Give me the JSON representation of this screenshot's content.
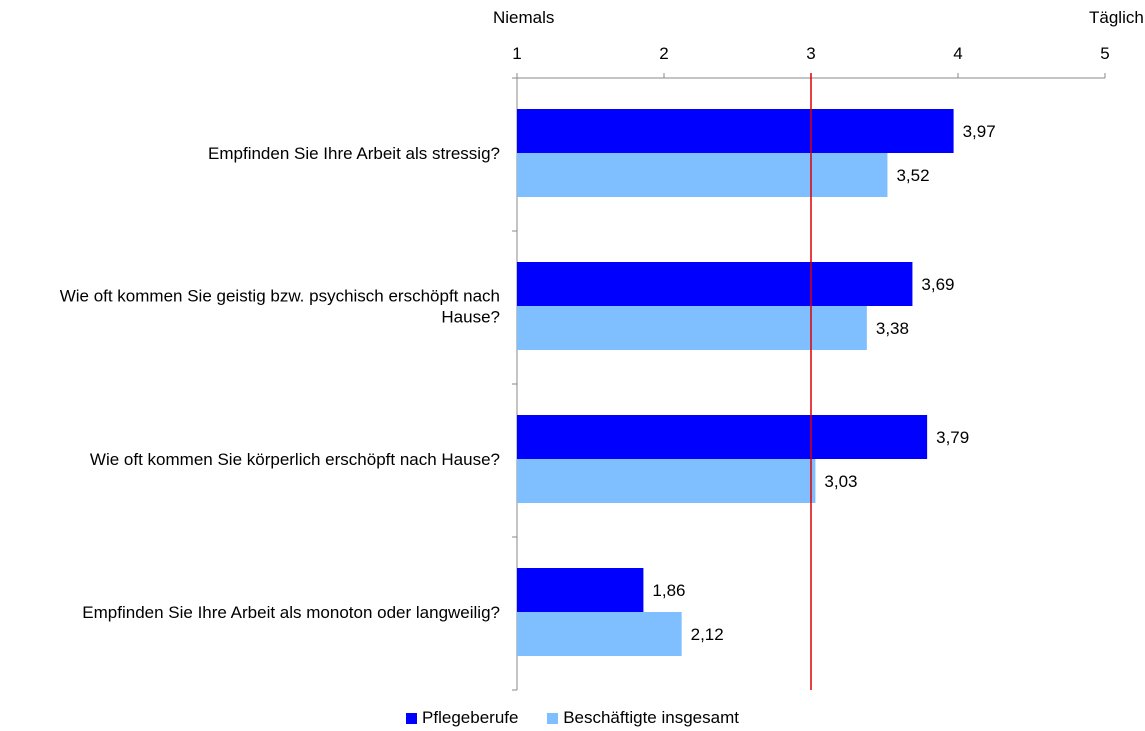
{
  "chart_data": {
    "type": "bar",
    "orientation": "horizontal",
    "axis_end_labels": {
      "left": "Niemals",
      "right": "Täglich"
    },
    "xlim": [
      1,
      5
    ],
    "ticks": [
      "1",
      "2",
      "3",
      "4",
      "5"
    ],
    "reference_line": {
      "value": 3,
      "color": "#dd0000"
    },
    "categories": [
      [
        "Empfinden Sie Ihre Arbeit als stressig?"
      ],
      [
        "Wie oft kommen Sie geistig bzw. psychisch erschöpft nach",
        "Hause?"
      ],
      [
        "Wie oft kommen Sie körperlich erschöpft nach Hause?"
      ],
      [
        "Empfinden Sie Ihre Arbeit als monoton oder langweilig?"
      ]
    ],
    "series": [
      {
        "name": "Pflegeberufe",
        "color": "#0000ff",
        "values": [
          3.97,
          3.69,
          3.79,
          1.86
        ],
        "labels": [
          "3,97",
          "3,69",
          "3,79",
          "1,86"
        ]
      },
      {
        "name": "Beschäftigte insgesamt",
        "color": "#7fbfff",
        "values": [
          3.52,
          3.38,
          3.03,
          2.12
        ],
        "labels": [
          "3,52",
          "3,38",
          "3,03",
          "2,12"
        ]
      }
    ],
    "legend_position": "bottom"
  }
}
